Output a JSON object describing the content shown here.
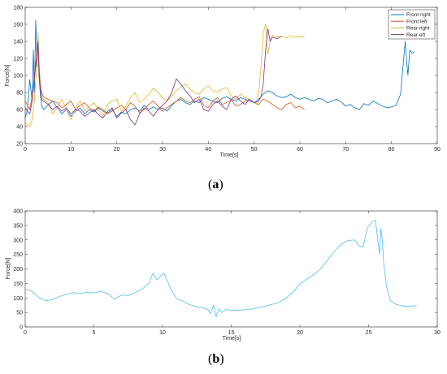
{
  "chart_data": [
    {
      "type": "line",
      "panel_label": "a",
      "xlabel": "Time[s]",
      "ylabel": "Force[N]",
      "xlim": [
        0,
        90
      ],
      "ylim": [
        20,
        180
      ],
      "xticks": [
        0,
        10,
        20,
        30,
        40,
        50,
        60,
        70,
        80,
        90
      ],
      "yticks": [
        20,
        40,
        60,
        80,
        100,
        120,
        140,
        160,
        180
      ],
      "legend_position": "top-right",
      "series": [
        {
          "name": "Front right",
          "color": "#0072BD",
          "x": [
            0,
            0.5,
            1,
            1.5,
            1.8,
            2.0,
            2.3,
            2.6,
            2.8,
            3.0,
            3.3,
            3.6,
            4,
            5,
            6,
            7,
            8,
            9,
            10,
            11,
            12,
            13,
            14,
            15,
            16,
            17,
            18,
            19,
            20,
            21,
            22,
            23,
            24,
            25,
            26,
            27,
            28,
            29,
            30,
            31,
            32,
            33,
            34,
            35,
            36,
            37,
            38,
            39,
            40,
            41,
            42,
            43,
            44,
            45,
            46,
            47,
            48,
            49,
            50,
            51,
            52,
            53,
            54,
            55,
            56,
            57,
            58,
            59,
            60,
            61,
            62,
            63,
            64,
            65,
            66,
            67,
            68,
            69,
            70,
            71,
            72,
            73,
            74,
            75,
            76,
            77,
            78,
            79,
            80,
            81,
            82,
            82.5,
            83,
            83.3,
            83.6,
            84,
            84.5,
            85
          ],
          "y": [
            50,
            60,
            95,
            70,
            130,
            80,
            165,
            110,
            145,
            100,
            78,
            65,
            60,
            65,
            70,
            62,
            55,
            60,
            52,
            58,
            62,
            55,
            60,
            57,
            62,
            58,
            56,
            60,
            52,
            57,
            55,
            60,
            62,
            58,
            65,
            60,
            63,
            60,
            62,
            58,
            65,
            70,
            72,
            68,
            66,
            70,
            68,
            74,
            72,
            70,
            68,
            73,
            75,
            72,
            70,
            74,
            72,
            70,
            68,
            72,
            78,
            82,
            80,
            76,
            74,
            75,
            78,
            74,
            72,
            74,
            72,
            70,
            73,
            72,
            68,
            70,
            72,
            69,
            64,
            66,
            62,
            60,
            67,
            65,
            70,
            67,
            64,
            62,
            63,
            65,
            78,
            110,
            140,
            118,
            100,
            130,
            126,
            128
          ]
        },
        {
          "name": "Front left",
          "color": "#D95319",
          "x": [
            0,
            0.5,
            1,
            1.5,
            2,
            2.5,
            2.8,
            3.0,
            3.3,
            3.6,
            4,
            5,
            6,
            7,
            8,
            9,
            10,
            11,
            12,
            13,
            14,
            15,
            16,
            17,
            18,
            19,
            20,
            21,
            22,
            23,
            24,
            25,
            26,
            27,
            28,
            29,
            30,
            31,
            32,
            33,
            34,
            35,
            36,
            37,
            38,
            39,
            40,
            41,
            42,
            43,
            44,
            45,
            46,
            47,
            48,
            49,
            50,
            51,
            52,
            53,
            54,
            55,
            56,
            57,
            58,
            59,
            60,
            61
          ],
          "y": [
            70,
            65,
            60,
            75,
            95,
            120,
            135,
            105,
            90,
            80,
            75,
            72,
            70,
            68,
            62,
            66,
            70,
            60,
            65,
            68,
            62,
            58,
            63,
            60,
            55,
            58,
            62,
            65,
            60,
            68,
            64,
            56,
            60,
            66,
            70,
            64,
            58,
            62,
            66,
            70,
            74,
            70,
            68,
            72,
            75,
            65,
            62,
            70,
            74,
            66,
            68,
            72,
            64,
            66,
            70,
            72,
            68,
            66,
            72,
            70,
            66,
            62,
            60,
            66,
            68,
            62,
            64,
            60
          ]
        },
        {
          "name": "Rear right",
          "color": "#EDB120",
          "x": [
            0,
            0.5,
            1,
            1.5,
            2,
            2.5,
            2.8,
            3.0,
            3.3,
            3.6,
            4,
            5,
            6,
            7,
            8,
            9,
            10,
            11,
            12,
            13,
            14,
            15,
            16,
            17,
            18,
            19,
            20,
            21,
            22,
            23,
            24,
            25,
            26,
            27,
            28,
            29,
            30,
            31,
            32,
            33,
            34,
            35,
            36,
            37,
            38,
            39,
            40,
            41,
            42,
            43,
            44,
            45,
            46,
            47,
            48,
            49,
            50,
            50.5,
            51,
            51.5,
            52,
            52.5,
            53,
            53.5,
            54,
            55,
            56,
            57,
            58,
            59,
            60,
            61
          ],
          "y": [
            45,
            42,
            40,
            48,
            70,
            110,
            150,
            120,
            90,
            75,
            72,
            68,
            55,
            62,
            72,
            60,
            48,
            62,
            70,
            58,
            64,
            68,
            60,
            52,
            66,
            70,
            72,
            58,
            64,
            74,
            80,
            68,
            72,
            78,
            85,
            80,
            74,
            70,
            76,
            82,
            86,
            90,
            84,
            80,
            78,
            84,
            88,
            82,
            80,
            84,
            86,
            76,
            72,
            78,
            74,
            72,
            68,
            66,
            80,
            110,
            150,
            160,
            125,
            140,
            147,
            145,
            146,
            144,
            147,
            145,
            146,
            145
          ]
        },
        {
          "name": "Rear eft",
          "color": "#7E2F8E",
          "x": [
            0,
            0.5,
            1,
            1.5,
            2,
            2.5,
            2.8,
            3.0,
            3.3,
            3.6,
            4,
            5,
            6,
            7,
            8,
            9,
            10,
            11,
            12,
            13,
            14,
            15,
            16,
            17,
            18,
            19,
            20,
            21,
            22,
            23,
            24,
            25,
            26,
            27,
            28,
            29,
            30,
            31,
            32,
            33,
            34,
            35,
            36,
            37,
            38,
            39,
            40,
            41,
            42,
            43,
            44,
            45,
            46,
            47,
            48,
            49,
            50,
            51,
            51.5,
            52,
            52.5,
            53,
            53.5,
            54,
            55,
            56
          ],
          "y": [
            62,
            58,
            55,
            70,
            100,
            125,
            140,
            110,
            85,
            72,
            70,
            66,
            60,
            64,
            58,
            62,
            55,
            60,
            58,
            52,
            56,
            60,
            54,
            50,
            58,
            62,
            50,
            56,
            60,
            48,
            42,
            55,
            62,
            58,
            52,
            60,
            65,
            70,
            80,
            96,
            90,
            82,
            76,
            68,
            72,
            60,
            58,
            66,
            70,
            64,
            60,
            72,
            76,
            70,
            66,
            72,
            68,
            70,
            75,
            90,
            130,
            155,
            140,
            145,
            143,
            146
          ]
        }
      ]
    },
    {
      "type": "line",
      "panel_label": "b",
      "xlabel": "Time[s]",
      "ylabel": "Force[N]",
      "xlim": [
        0,
        30
      ],
      "ylim": [
        0,
        400
      ],
      "xticks": [
        0,
        5,
        10,
        15,
        20,
        25,
        30
      ],
      "yticks": [
        0,
        50,
        100,
        150,
        200,
        250,
        300,
        350,
        400
      ],
      "series": [
        {
          "color": "#4DBEEE",
          "x": [
            0,
            0.3,
            0.6,
            1.0,
            1.5,
            2.0,
            2.5,
            3.0,
            3.5,
            4.0,
            4.5,
            5.0,
            5.5,
            6.0,
            6.5,
            7.0,
            7.5,
            8.0,
            8.5,
            9.0,
            9.3,
            9.6,
            9.9,
            10.1,
            10.3,
            10.6,
            11.0,
            11.5,
            12.0,
            12.5,
            13.0,
            13.3,
            13.5,
            13.7,
            13.9,
            14.1,
            14.3,
            14.6,
            15.0,
            15.5,
            16.0,
            16.5,
            17.0,
            17.5,
            18.0,
            18.5,
            19.0,
            19.5,
            20.0,
            20.5,
            21.0,
            21.5,
            22.0,
            22.5,
            23.0,
            23.5,
            24.0,
            24.3,
            24.6,
            24.9,
            25.2,
            25.5,
            25.8,
            25.9,
            26.0,
            26.1,
            26.3,
            26.6,
            27.0,
            27.5,
            28.0,
            28.5
          ],
          "y": [
            130,
            128,
            118,
            102,
            90,
            95,
            105,
            112,
            118,
            115,
            120,
            117,
            123,
            115,
            95,
            110,
            108,
            118,
            130,
            150,
            185,
            162,
            178,
            185,
            165,
            130,
            100,
            88,
            76,
            70,
            65,
            60,
            45,
            75,
            35,
            62,
            50,
            60,
            58,
            57,
            60,
            62,
            67,
            72,
            78,
            85,
            100,
            120,
            148,
            165,
            180,
            200,
            230,
            260,
            285,
            298,
            300,
            280,
            275,
            340,
            360,
            368,
            250,
            340,
            300,
            220,
            140,
            90,
            78,
            72,
            72,
            73
          ]
        }
      ]
    }
  ],
  "captions": {
    "a": {
      "open": "(",
      "letter": "a",
      "close": ")"
    },
    "b": {
      "open": "(",
      "letter": "b",
      "close": ")"
    }
  }
}
